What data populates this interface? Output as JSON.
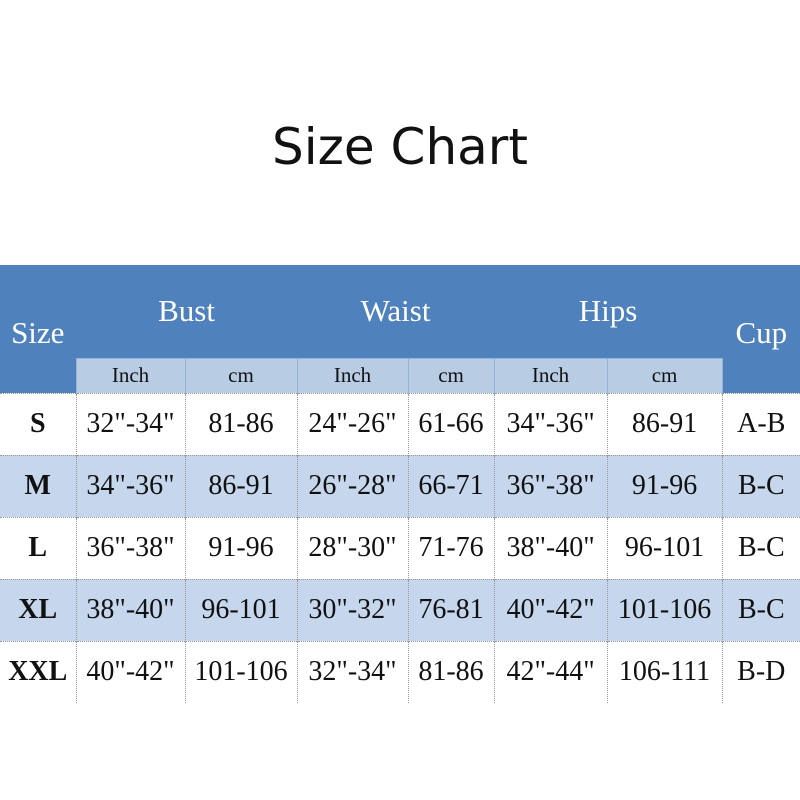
{
  "title": "Size Chart",
  "header": {
    "size": "Size",
    "bust": "Bust",
    "waist": "Waist",
    "hips": "Hips",
    "cup": "Cup",
    "units": [
      "Inch",
      "cm",
      "Inch",
      "cm",
      "Inch",
      "cm"
    ]
  },
  "rows": [
    [
      "S",
      "32\"-34\"",
      "81-86",
      "24\"-26\"",
      "61-66",
      "34\"-36\"",
      "86-91",
      "A-B"
    ],
    [
      "M",
      "34\"-36\"",
      "86-91",
      "26\"-28\"",
      "66-71",
      "36\"-38\"",
      "91-96",
      "B-C"
    ],
    [
      "L",
      "36\"-38\"",
      "91-96",
      "28\"-30\"",
      "71-76",
      "38\"-40\"",
      "96-101",
      "B-C"
    ],
    [
      "XL",
      "38\"-40\"",
      "96-101",
      "30\"-32\"",
      "76-81",
      "40\"-42\"",
      "101-106",
      "B-C"
    ],
    [
      "XXL",
      "40\"-42\"",
      "101-106",
      "32\"-34\"",
      "81-86",
      "42\"-44\"",
      "106-111",
      "B-D"
    ]
  ],
  "colors": {
    "header": "#4f81bd",
    "subheader": "#b8cce4",
    "alt_row": "#c6d6ec"
  }
}
